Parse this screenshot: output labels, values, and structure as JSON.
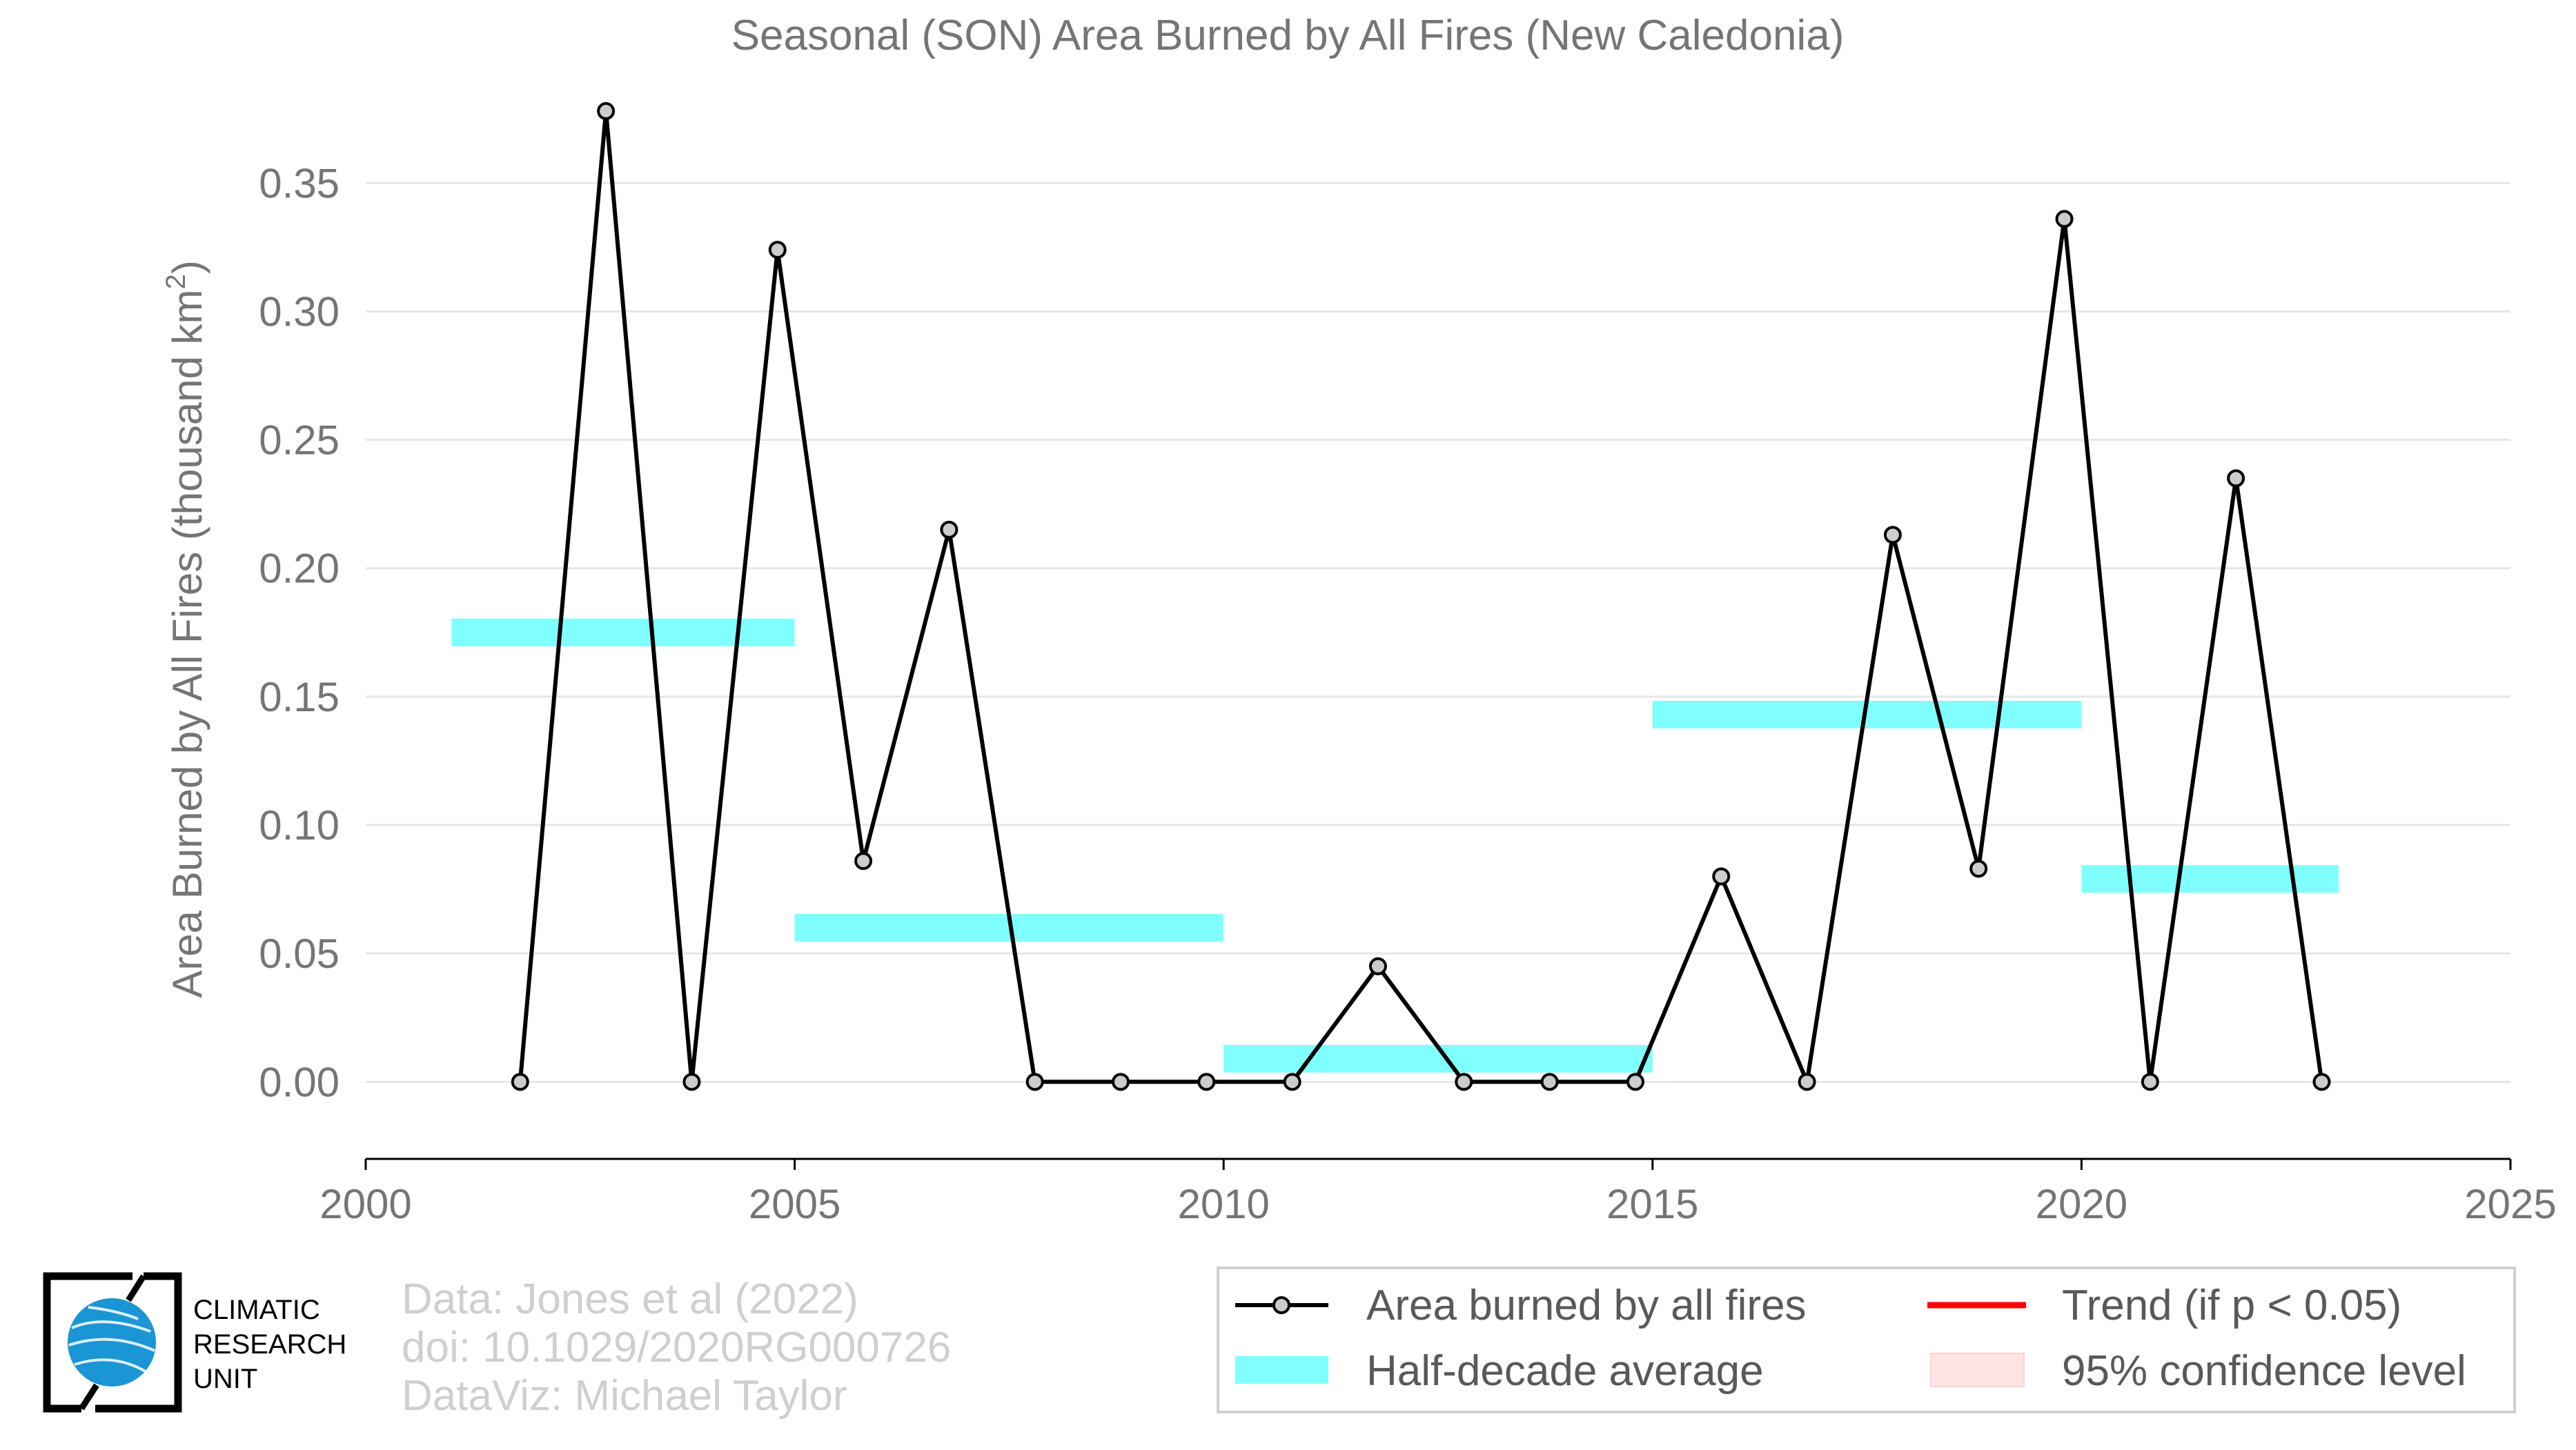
{
  "chart_data": {
    "type": "line",
    "title": "Seasonal (SON) Area Burned by All Fires (New Caledonia)",
    "ylabel_main": "Area Burned by All Fires (thousand km",
    "ylabel_sup": "2",
    "ylabel_close": ")",
    "xlim": [
      2000,
      2025
    ],
    "ylim": [
      -0.03,
      0.385
    ],
    "xticks": [
      2000,
      2005,
      2010,
      2015,
      2020,
      2025
    ],
    "yticks": [
      0.0,
      0.05,
      0.1,
      0.15,
      0.2,
      0.25,
      0.3,
      0.35
    ],
    "ytick_labels": [
      "0.00",
      "0.05",
      "0.10",
      "0.15",
      "0.20",
      "0.25",
      "0.30",
      "0.35"
    ],
    "grid": true,
    "colors": {
      "line": "#000000",
      "marker_fill": "#cccccc",
      "half_decade": "#80ffff",
      "trend": "#ff0000",
      "ci": "#ffe4e4",
      "grid": "#e6e6e6",
      "logo_globe": "#1a96d4"
    },
    "series": [
      {
        "name": "Area burned by all fires",
        "x": [
          2001.8,
          2002.8,
          2003.8,
          2004.8,
          2005.8,
          2006.8,
          2007.8,
          2008.8,
          2009.8,
          2010.8,
          2011.8,
          2012.8,
          2013.8,
          2014.8,
          2015.8,
          2016.8,
          2017.8,
          2018.8,
          2019.8,
          2020.8,
          2021.8,
          2022.8
        ],
        "values": [
          0.0,
          0.378,
          0.0,
          0.324,
          0.086,
          0.215,
          0.0,
          0.0,
          0.0,
          0.0,
          0.045,
          0.0,
          0.0,
          0.0,
          0.08,
          0.0,
          0.213,
          0.083,
          0.336,
          0.0,
          0.235,
          0.0
        ]
      }
    ],
    "half_decade_averages": {
      "name": "Half-decade average",
      "segments": [
        {
          "x0": 2001,
          "x1": 2005,
          "value": 0.175
        },
        {
          "x0": 2005,
          "x1": 2010,
          "value": 0.06
        },
        {
          "x0": 2010,
          "x1": 2015,
          "value": 0.009
        },
        {
          "x0": 2015,
          "x1": 2020,
          "value": 0.143
        },
        {
          "x0": 2020,
          "x1": 2023,
          "value": 0.079
        }
      ]
    },
    "legend": {
      "placement": "bottom-right",
      "items": [
        {
          "label": "Area burned by all fires",
          "kind": "line-marker"
        },
        {
          "label": "Trend (if p < 0.05)",
          "kind": "trend"
        },
        {
          "label": "Half-decade average",
          "kind": "band"
        },
        {
          "label": "95% confidence level",
          "kind": "ci"
        }
      ]
    }
  },
  "credits": {
    "line1": "Data: Jones et al (2022)",
    "line2": "doi: 10.1029/2020RG000726",
    "line3": "DataViz: Michael Taylor"
  },
  "logo": {
    "line1": "CLIMATIC",
    "line2": "RESEARCH",
    "line3": "UNIT"
  }
}
